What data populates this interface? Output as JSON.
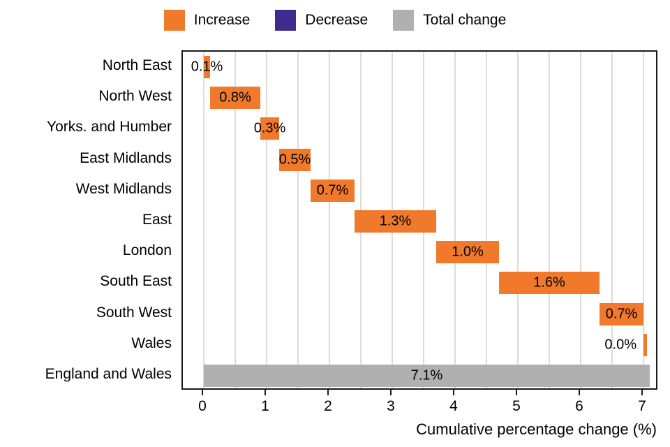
{
  "chart_data": {
    "type": "bar",
    "subtype": "waterfall",
    "orientation": "horizontal",
    "title": "",
    "xlabel": "Cumulative percentage change (%)",
    "ylabel": "",
    "x_ticks": [
      "0",
      "1",
      "2",
      "3",
      "4",
      "5",
      "6",
      "7"
    ],
    "x_tick_values": [
      0,
      1,
      2,
      3,
      4,
      5,
      6,
      7
    ],
    "x_max_drawn": 7.1,
    "gridline_step": 0.5,
    "grid_on": true,
    "legend_position": "top-center",
    "colors": {
      "increase": "#F0792B",
      "decrease": "#3D2B8E",
      "total": "#B0B0B0",
      "gridline": "#dcdcdc",
      "border": "#1a1a1a"
    },
    "legend": [
      {
        "label": "Increase",
        "kind": "increase",
        "color": "#F0792B"
      },
      {
        "label": "Decrease",
        "kind": "decrease",
        "color": "#3D2B8E"
      },
      {
        "label": "Total change",
        "kind": "total",
        "color": "#B0B0B0"
      }
    ],
    "bars": [
      {
        "category": "North East",
        "value": 0.1,
        "value_label": "0.1%",
        "start": 0,
        "end": 0.1,
        "kind": "increase",
        "label_pos": "center"
      },
      {
        "category": "North West",
        "value": 0.8,
        "value_label": "0.8%",
        "start": 0.1,
        "end": 0.9,
        "kind": "increase",
        "label_pos": "center"
      },
      {
        "category": "Yorks. and Humber",
        "value": 0.3,
        "value_label": "0.3%",
        "start": 0.9,
        "end": 1.2,
        "kind": "increase",
        "label_pos": "center"
      },
      {
        "category": "East Midlands",
        "value": 0.5,
        "value_label": "0.5%",
        "start": 1.2,
        "end": 1.7,
        "kind": "increase",
        "label_pos": "center"
      },
      {
        "category": "West Midlands",
        "value": 0.7,
        "value_label": "0.7%",
        "start": 1.7,
        "end": 2.4,
        "kind": "increase",
        "label_pos": "center"
      },
      {
        "category": "East",
        "value": 1.3,
        "value_label": "1.3%",
        "start": 2.4,
        "end": 3.7,
        "kind": "increase",
        "label_pos": "center"
      },
      {
        "category": "London",
        "value": 1.0,
        "value_label": "1.0%",
        "start": 3.7,
        "end": 4.7,
        "kind": "increase",
        "label_pos": "center"
      },
      {
        "category": "South East",
        "value": 1.6,
        "value_label": "1.6%",
        "start": 4.7,
        "end": 6.3,
        "kind": "increase",
        "label_pos": "center"
      },
      {
        "category": "South West",
        "value": 0.7,
        "value_label": "0.7%",
        "start": 6.3,
        "end": 7.0,
        "kind": "increase",
        "label_pos": "center"
      },
      {
        "category": "Wales",
        "value": 0.0,
        "value_label": "0.0%",
        "start": 7.0,
        "end": 7.05,
        "kind": "increase",
        "label_pos": "left"
      },
      {
        "category": "England and Wales",
        "value": 7.1,
        "value_label": "7.1%",
        "start": 0,
        "end": 7.1,
        "kind": "total",
        "label_pos": "center"
      }
    ]
  }
}
